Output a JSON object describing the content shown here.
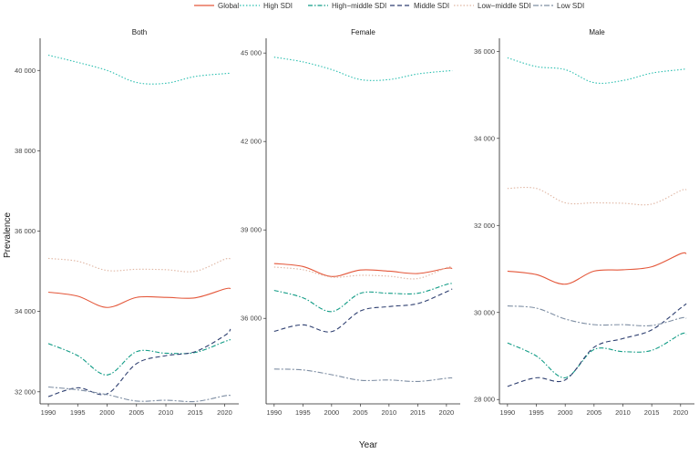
{
  "chart_data": {
    "type": "line",
    "xlabel": "Year",
    "ylabel": "Prevalence",
    "x_ticks": [
      1990,
      1995,
      2000,
      2005,
      2010,
      2015,
      2020
    ],
    "legend": [
      {
        "name": "Global",
        "color": "#e4573a",
        "dash": "solid"
      },
      {
        "name": "High SDI",
        "color": "#2bbfb0",
        "dash": "dotted"
      },
      {
        "name": "High−middle SDI",
        "color": "#129c86",
        "dash": "dashdot"
      },
      {
        "name": "Middle SDI",
        "color": "#2e3f70",
        "dash": "dashed"
      },
      {
        "name": "Low−middle SDI",
        "color": "#e0b6a3",
        "dash": "dotted"
      },
      {
        "name": "Low SDI",
        "color": "#7f8fa4",
        "dash": "longdash"
      }
    ],
    "panels": [
      {
        "title": "Both",
        "ylim": [
          31700,
          40800
        ],
        "y_ticks": [
          32000,
          34000,
          36000,
          38000,
          40000
        ],
        "y_tick_labels": [
          "32 000",
          "34 000",
          "36 000",
          "38 000",
          "40 000"
        ],
        "x": [
          1990,
          1995,
          2000,
          2005,
          2010,
          2015,
          2020,
          2021
        ],
        "series": [
          {
            "name": "Global",
            "values": [
              34480,
              34380,
              34100,
              34350,
              34350,
              34340,
              34560,
              34570
            ]
          },
          {
            "name": "High SDI",
            "values": [
              40380,
              40200,
              40000,
              39700,
              39680,
              39850,
              39920,
              39930
            ]
          },
          {
            "name": "High−middle SDI",
            "values": [
              33200,
              32900,
              32420,
              33000,
              32960,
              32980,
              33250,
              33300
            ]
          },
          {
            "name": "Middle SDI",
            "values": [
              31880,
              32100,
              31950,
              32700,
              32900,
              33000,
              33400,
              33560
            ]
          },
          {
            "name": "Low−middle SDI",
            "values": [
              35320,
              35250,
              35020,
              35050,
              35040,
              35000,
              35300,
              35300
            ]
          },
          {
            "name": "Low SDI",
            "values": [
              32120,
              32050,
              31930,
              31770,
              31790,
              31760,
              31900,
              31910
            ]
          }
        ]
      },
      {
        "title": "Female",
        "ylim": [
          33100,
          45500
        ],
        "y_ticks": [
          36000,
          39000,
          42000,
          45000
        ],
        "y_tick_labels": [
          "36 000",
          "39 000",
          "42 000",
          "45 000"
        ],
        "x": [
          1990,
          1995,
          2000,
          2005,
          2010,
          2015,
          2020,
          2021
        ],
        "series": [
          {
            "name": "Global",
            "values": [
              37860,
              37760,
              37420,
              37640,
              37600,
              37520,
              37700,
              37690
            ]
          },
          {
            "name": "High SDI",
            "values": [
              44860,
              44700,
              44440,
              44100,
              44100,
              44290,
              44390,
              44400
            ]
          },
          {
            "name": "High−middle SDI",
            "values": [
              36950,
              36700,
              36230,
              36850,
              36850,
              36850,
              37150,
              37180
            ]
          },
          {
            "name": "Middle SDI",
            "values": [
              35560,
              35780,
              35550,
              36250,
              36400,
              36500,
              36900,
              37000
            ]
          },
          {
            "name": "Low−middle SDI",
            "values": [
              37740,
              37650,
              37400,
              37460,
              37430,
              37350,
              37720,
              37730
            ]
          },
          {
            "name": "Low SDI",
            "values": [
              34280,
              34250,
              34090,
              33900,
              33910,
              33860,
              33970,
              33980
            ]
          }
        ]
      },
      {
        "title": "Male",
        "ylim": [
          27900,
          36300
        ],
        "y_ticks": [
          28000,
          30000,
          32000,
          34000,
          36000
        ],
        "y_tick_labels": [
          "28 000",
          "30 000",
          "32 000",
          "34 000",
          "36 000"
        ],
        "x": [
          1990,
          1995,
          2000,
          2005,
          2010,
          2015,
          2020,
          2021
        ],
        "series": [
          {
            "name": "Global",
            "values": [
              30950,
              30870,
              30650,
              30950,
              30980,
              31050,
              31350,
              31350
            ]
          },
          {
            "name": "High SDI",
            "values": [
              35850,
              35650,
              35580,
              35280,
              35330,
              35500,
              35580,
              35600
            ]
          },
          {
            "name": "High−middle SDI",
            "values": [
              29300,
              29000,
              28500,
              29150,
              29100,
              29130,
              29500,
              29500
            ]
          },
          {
            "name": "Middle SDI",
            "values": [
              28300,
              28500,
              28450,
              29200,
              29400,
              29600,
              30100,
              30200
            ]
          },
          {
            "name": "Low−middle SDI",
            "values": [
              32850,
              32850,
              32520,
              32520,
              32510,
              32490,
              32800,
              32820
            ]
          },
          {
            "name": "Low SDI",
            "values": [
              30150,
              30100,
              29850,
              29720,
              29720,
              29700,
              29870,
              29870
            ]
          }
        ]
      }
    ]
  }
}
